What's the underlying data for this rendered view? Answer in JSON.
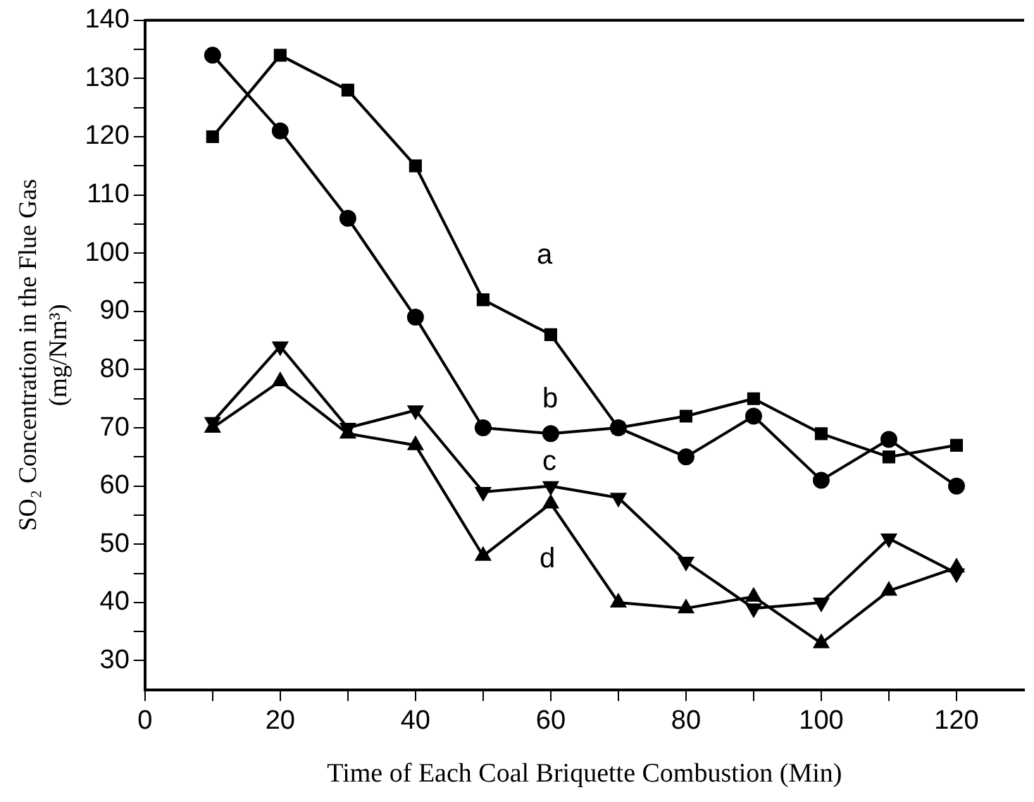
{
  "chart_data": {
    "type": "line",
    "xlabel": "Time of Each Coal Briquette Combustion (Min)",
    "ylabel": "SO₂ Concentration in the Flue Gas\n(mg/Nm³)",
    "x": [
      10,
      20,
      30,
      40,
      50,
      60,
      70,
      80,
      90,
      100,
      110,
      120
    ],
    "series": [
      {
        "name": "a",
        "color": "#000000",
        "marker": "square",
        "values": [
          120,
          134,
          128,
          115,
          92,
          86,
          70,
          72,
          75,
          69,
          65,
          67
        ]
      },
      {
        "name": "b",
        "color": "#000000",
        "marker": "circle",
        "values": [
          134,
          121,
          106,
          89,
          70,
          69,
          70,
          65,
          72,
          61,
          68,
          60
        ]
      },
      {
        "name": "c",
        "color": "#000000",
        "marker": "triangle-down",
        "values": [
          71,
          84,
          70,
          73,
          59,
          60,
          58,
          47,
          39,
          40,
          51,
          45
        ]
      },
      {
        "name": "d",
        "color": "#000000",
        "marker": "triangle",
        "values": [
          70,
          78,
          69,
          67,
          48,
          57,
          40,
          39,
          41,
          33,
          42,
          46
        ]
      }
    ],
    "xlim": [
      0,
      130
    ],
    "xticks": [
      0,
      {
        "value": 10,
        "label": null
      },
      20,
      {
        "value": 30,
        "label": null
      },
      40,
      {
        "value": 50,
        "label": null
      },
      60,
      {
        "value": 70,
        "label": null
      },
      80,
      {
        "value": 90,
        "label": null
      },
      100,
      {
        "value": 110,
        "label": null
      },
      120
    ],
    "ylim": [
      25,
      140
    ],
    "yticks": [
      30,
      {
        "value": 35,
        "label": null
      },
      40,
      {
        "value": 45,
        "label": null
      },
      50,
      {
        "value": 55,
        "label": null
      },
      60,
      {
        "value": 65,
        "label": null
      },
      70,
      {
        "value": 75,
        "label": null
      },
      80,
      {
        "value": 85,
        "label": null
      },
      90,
      {
        "value": 95,
        "label": null
      },
      100,
      {
        "value": 105,
        "label": null
      },
      110,
      {
        "value": 115,
        "label": null
      },
      120,
      {
        "value": 125,
        "label": null
      },
      130,
      {
        "value": 135,
        "label": null
      },
      140
    ],
    "grid": false,
    "legend": false,
    "line_style": "solid"
  }
}
